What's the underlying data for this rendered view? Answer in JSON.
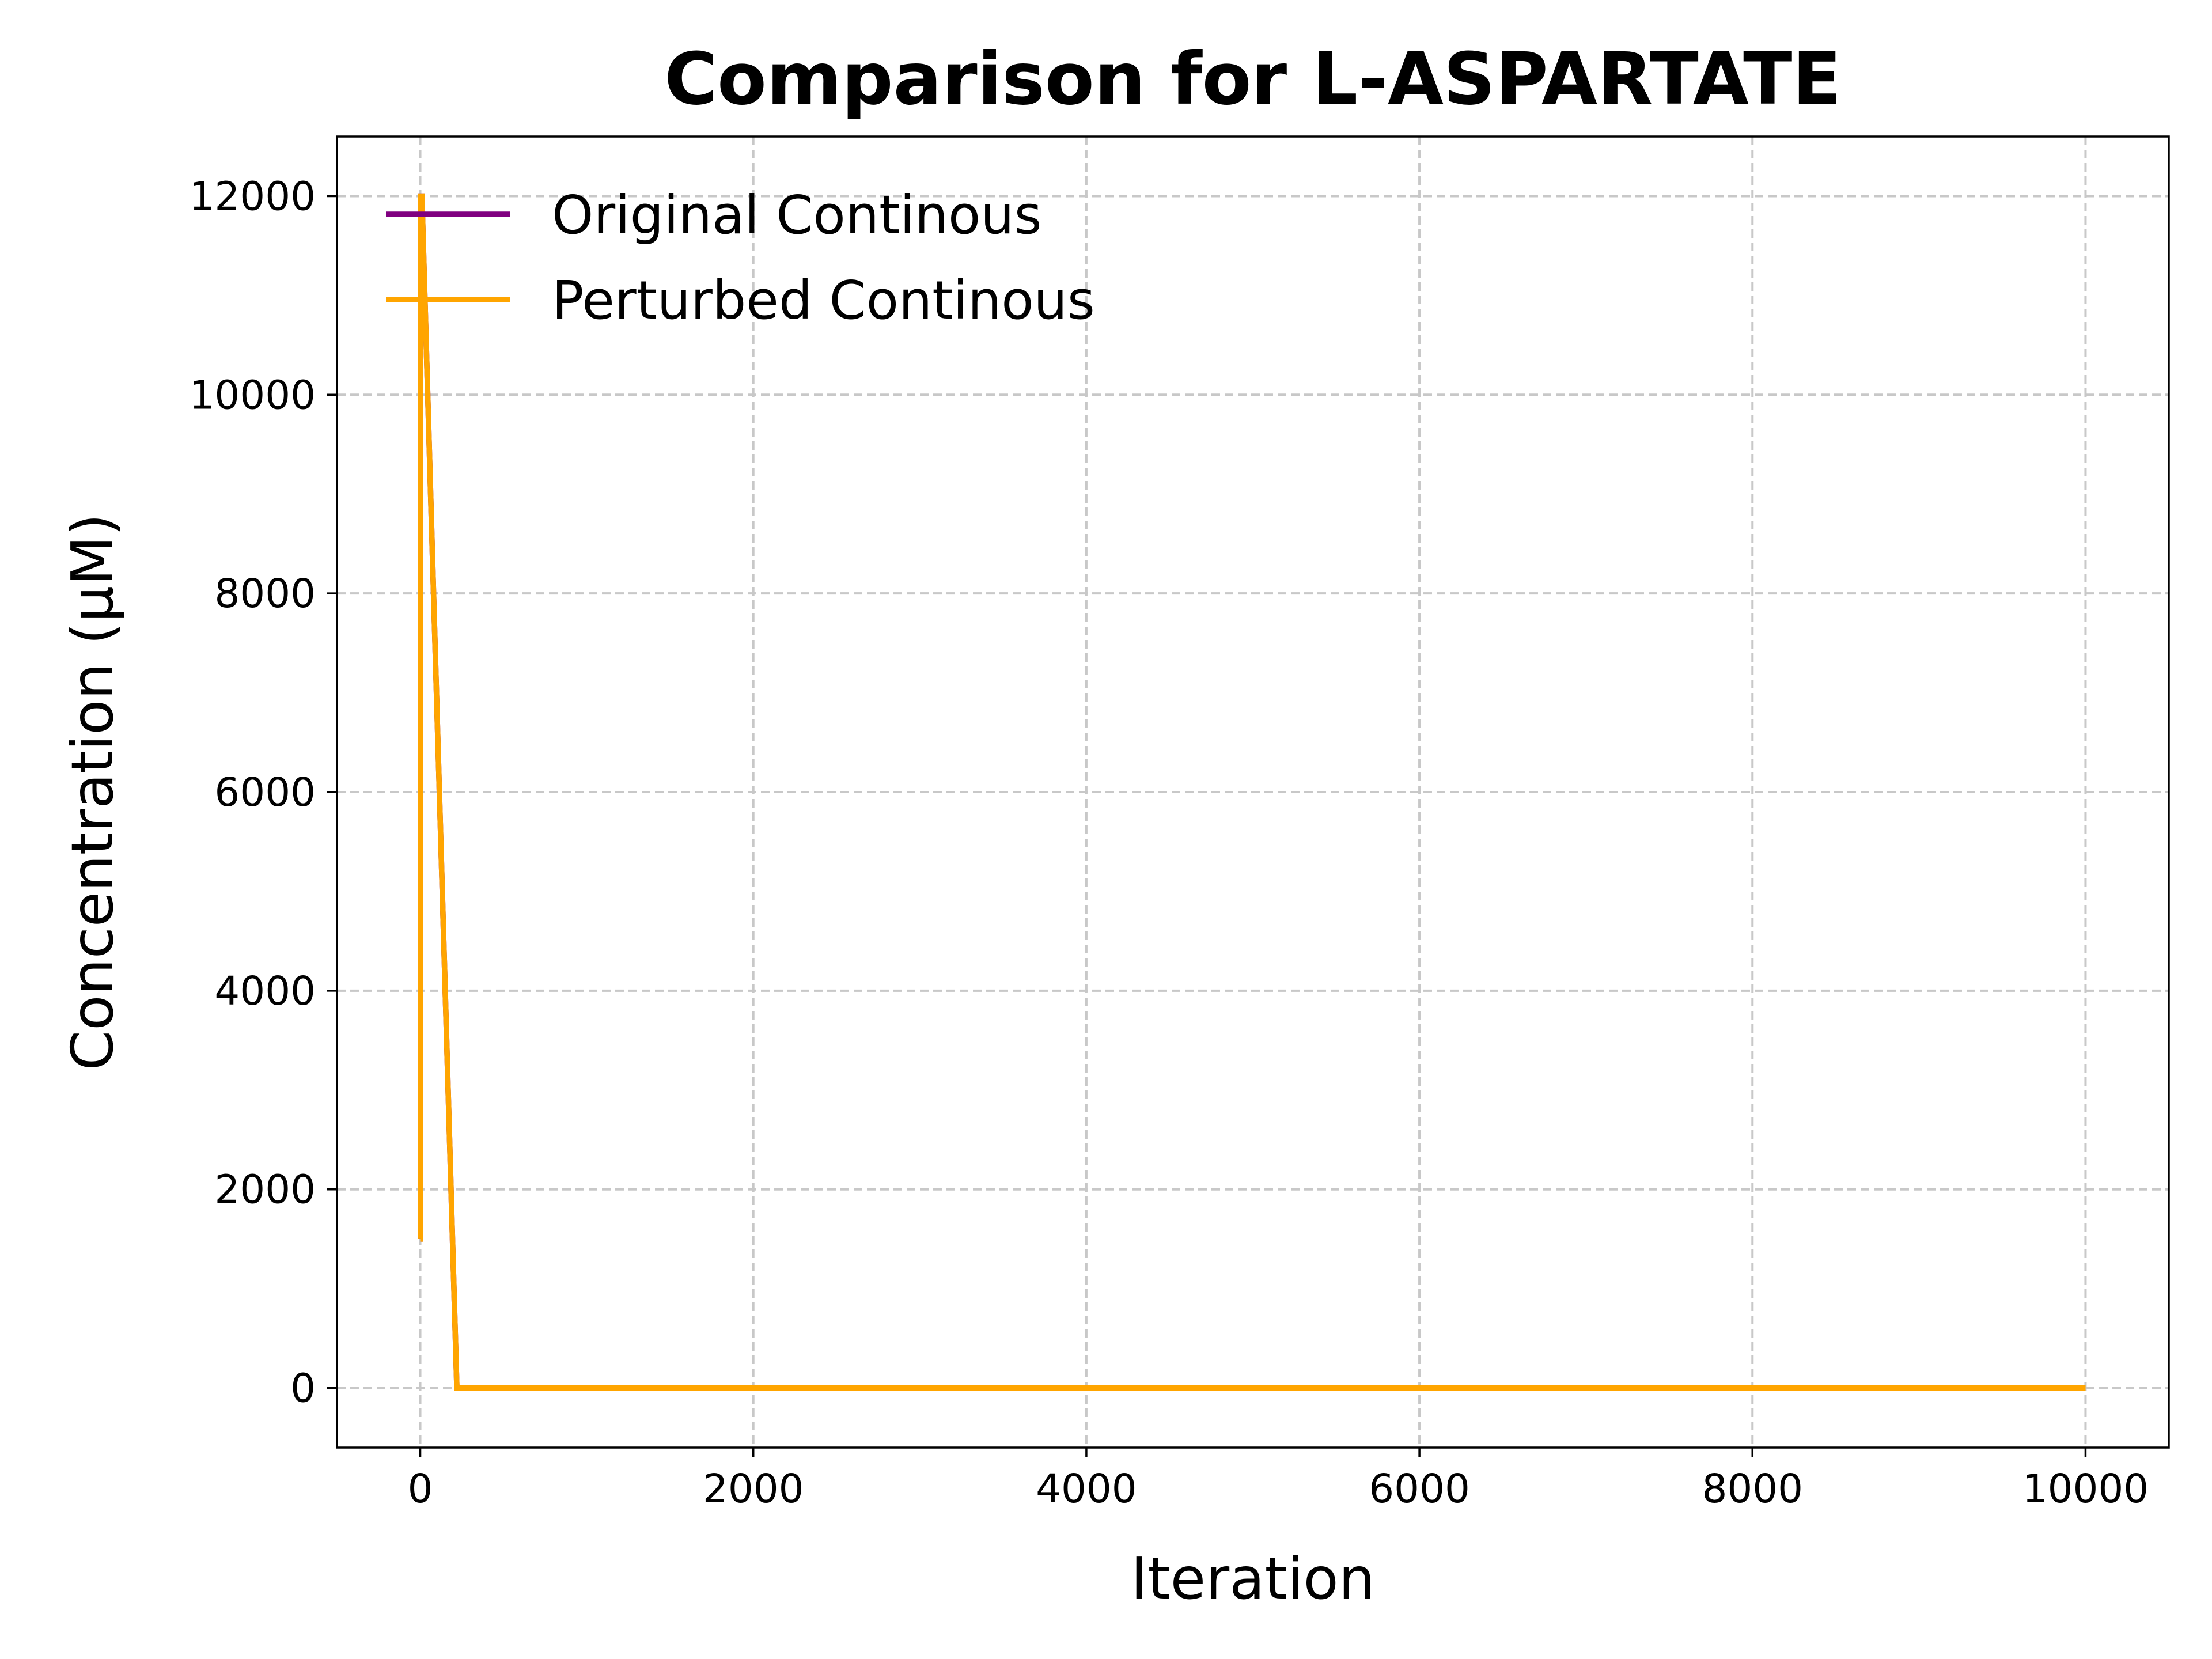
{
  "chart_data": {
    "type": "line",
    "title": "Comparison for L-ASPARTATE",
    "xlabel": "Iteration",
    "ylabel": "Concentration (μM)",
    "xlim": [
      -500,
      10500
    ],
    "ylim": [
      -600,
      12600
    ],
    "xticks": [
      0,
      2000,
      4000,
      6000,
      8000,
      10000
    ],
    "yticks": [
      0,
      2000,
      4000,
      6000,
      8000,
      10000,
      12000
    ],
    "grid": true,
    "legend_position": "upper-left",
    "series": [
      {
        "name": "Original Continous",
        "color": "#800080",
        "x": [
          0,
          1,
          2,
          10,
          220,
          10000
        ],
        "y": [
          1500,
          1500,
          12000,
          12000,
          0,
          0
        ]
      },
      {
        "name": "Perturbed Continous",
        "color": "#ffa500",
        "x": [
          0,
          1,
          2,
          10,
          220,
          10000
        ],
        "y": [
          1500,
          1500,
          12000,
          12000,
          0,
          0
        ]
      }
    ]
  }
}
